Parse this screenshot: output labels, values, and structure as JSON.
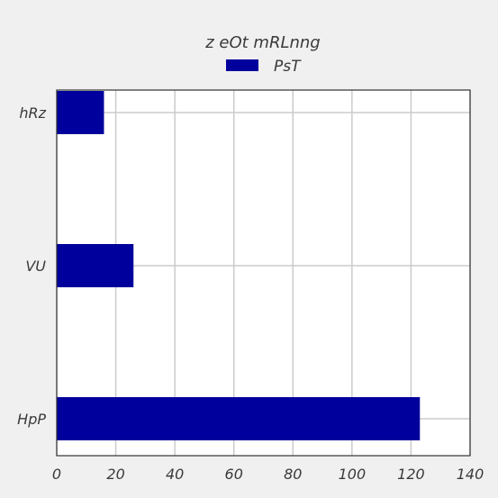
{
  "chart_data": {
    "type": "bar",
    "orientation": "horizontal",
    "legend_title": "z eOt mRLnng",
    "legend_position": "top-center",
    "categories": [
      "hRz",
      "VU",
      "HpP"
    ],
    "series": [
      {
        "name": "PsT",
        "values": [
          16,
          26,
          123
        ],
        "color": "#00009c"
      }
    ],
    "xlim": [
      0,
      140
    ],
    "xticks": [
      0,
      20,
      40,
      60,
      80,
      100,
      120,
      140
    ],
    "xtick_labels": [
      "0",
      "20",
      "40",
      "60",
      "80",
      "100",
      "120",
      "140"
    ],
    "grid": true,
    "colors": {
      "background": "#f0f0f0",
      "plot_background": "#ffffff",
      "grid": "#cbcbcb",
      "axis": "#333333"
    }
  }
}
